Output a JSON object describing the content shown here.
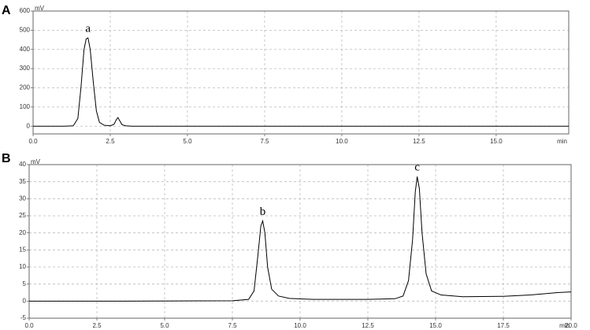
{
  "chart_data": [
    {
      "type": "line",
      "panel": "A",
      "y_unit": "mV",
      "x_unit": "min",
      "color": "#000000",
      "grid": true,
      "x": [
        0,
        1.0,
        1.3,
        1.45,
        1.55,
        1.65,
        1.72,
        1.78,
        1.85,
        1.95,
        2.05,
        2.15,
        2.3,
        2.5,
        2.62,
        2.7,
        2.75,
        2.8,
        2.88,
        3.0,
        3.2,
        4,
        17.35
      ],
      "values": [
        0,
        0,
        2,
        40,
        200,
        400,
        455,
        460,
        400,
        230,
        80,
        20,
        5,
        2,
        10,
        35,
        45,
        30,
        8,
        2,
        0,
        0,
        0
      ],
      "xlim": [
        0,
        17.35
      ],
      "ylim": [
        -40,
        600
      ],
      "xticks": [
        {
          "value": 0,
          "label": "0.0"
        },
        {
          "value": 2.5,
          "label": "2.5"
        },
        {
          "value": 5,
          "label": "5.0"
        },
        {
          "value": 7.5,
          "label": "7.5"
        },
        {
          "value": 10,
          "label": "10.0"
        },
        {
          "value": 12.5,
          "label": "12.5"
        },
        {
          "value": 15,
          "label": "15.0"
        }
      ],
      "yticks": [
        0,
        100,
        200,
        300,
        400,
        500,
        600
      ],
      "annotations": [
        {
          "text": "a",
          "x": 1.78,
          "y": 460
        }
      ]
    },
    {
      "type": "line",
      "panel": "B",
      "y_unit": "mV",
      "x_unit": "min",
      "color": "#000000",
      "grid": true,
      "x": [
        0,
        3.5,
        7.5,
        8.1,
        8.3,
        8.45,
        8.55,
        8.62,
        8.7,
        8.8,
        8.95,
        9.2,
        9.6,
        10.5,
        12.5,
        13.5,
        13.8,
        14.0,
        14.15,
        14.25,
        14.32,
        14.4,
        14.5,
        14.65,
        14.85,
        15.2,
        16,
        17.5,
        18.5,
        19.5,
        20
      ],
      "values": [
        0,
        0,
        0.1,
        0.5,
        3,
        14,
        22,
        23.5,
        20,
        10,
        3.5,
        1.5,
        0.8,
        0.5,
        0.5,
        0.7,
        1.5,
        6,
        18,
        32,
        36.5,
        33,
        20,
        8,
        3,
        1.8,
        1.3,
        1.4,
        1.8,
        2.5,
        2.7
      ],
      "xlim": [
        0,
        20
      ],
      "ylim": [
        -5,
        40
      ],
      "xticks": [
        {
          "value": 0,
          "label": "0.0"
        },
        {
          "value": 2.5,
          "label": "2.5"
        },
        {
          "value": 5,
          "label": "5.0"
        },
        {
          "value": 7.5,
          "label": "7.5"
        },
        {
          "value": 10,
          "label": "10.0"
        },
        {
          "value": 12.5,
          "label": "12.5"
        },
        {
          "value": 15,
          "label": "15.0"
        },
        {
          "value": 17.5,
          "label": "17.5"
        },
        {
          "value": 20,
          "label": "20.0"
        }
      ],
      "yticks": [
        -5,
        0,
        5,
        10,
        15,
        20,
        25,
        30,
        35,
        40
      ],
      "annotations": [
        {
          "text": "b",
          "x": 8.62,
          "y": 23.5
        },
        {
          "text": "c",
          "x": 14.32,
          "y": 36.5
        }
      ]
    }
  ]
}
